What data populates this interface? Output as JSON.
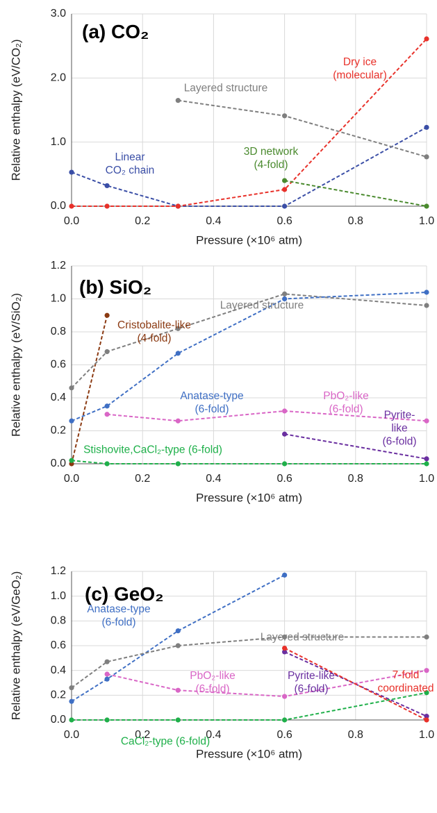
{
  "chart_data": [
    {
      "type": "line",
      "title": "(a) CO₂",
      "x_label": "Pressure (×10⁶ atm)",
      "y_label": "Relative enthalpy (eV/CO₂)",
      "x": [
        0,
        0.1,
        0.3,
        0.6,
        1.0
      ],
      "xlim": [
        0,
        1.0
      ],
      "xticks": [
        {
          "value": 0,
          "label": "0.0"
        },
        0.2,
        0.4,
        0.6,
        0.8,
        {
          "value": 1,
          "label": "1.0"
        }
      ],
      "ylim": [
        0,
        3.0
      ],
      "yticks": [
        {
          "value": 0,
          "label": "0.0"
        },
        {
          "value": 1,
          "label": "1.0"
        },
        {
          "value": 2,
          "label": "2.0"
        },
        {
          "value": 3,
          "label": "3.0"
        }
      ],
      "grid": true,
      "series": [
        {
          "name": "Linear\nCO₂ chain",
          "color": "#3a4ea6",
          "values": [
            0.53,
            0.32,
            0.0,
            0.0,
            1.23
          ]
        },
        {
          "name": "Dry ice\n(molecular)",
          "color": "#e8312a",
          "values": [
            0.0,
            0.0,
            0.0,
            0.26,
            2.61
          ]
        },
        {
          "name": "Layered structure",
          "color": "#7f7f7f",
          "values": [
            null,
            null,
            1.65,
            1.41,
            0.77
          ]
        },
        {
          "name": "3D network\n(4-fold)",
          "color": "#4a8a2e",
          "values": [
            null,
            null,
            null,
            0.4,
            0.0
          ]
        }
      ]
    },
    {
      "type": "line",
      "title": "(b) SiO₂",
      "x_label": "Pressure (×10⁶ atm)",
      "y_label": "Relative enthalpy (eV/SiO₂)",
      "x": [
        0,
        0.1,
        0.3,
        0.6,
        1.0
      ],
      "xlim": [
        0,
        1.0
      ],
      "xticks": [
        {
          "value": 0,
          "label": "0.0"
        },
        0.2,
        0.4,
        0.6,
        0.8,
        {
          "value": 1,
          "label": "1.0"
        }
      ],
      "ylim": [
        0,
        1.2
      ],
      "yticks": [
        {
          "value": 0,
          "label": "0.0"
        },
        0.2,
        0.4,
        0.6,
        0.8,
        {
          "value": 1,
          "label": "1.0"
        },
        1.2
      ],
      "grid": true,
      "series": [
        {
          "name": "Cristobalite-like\n(4-fold)",
          "color": "#8b3a12",
          "values": [
            0.0,
            0.9,
            null,
            null,
            null
          ]
        },
        {
          "name": "Layered structure",
          "color": "#7f7f7f",
          "values": [
            0.46,
            0.68,
            0.82,
            1.03,
            0.96
          ]
        },
        {
          "name": "Anatase-type\n(6-fold)",
          "color": "#3f6fc4",
          "values": [
            0.26,
            0.35,
            0.67,
            1.0,
            1.04
          ]
        },
        {
          "name": "PbO₂-like\n(6-fold)",
          "color": "#d966c6",
          "values": [
            null,
            0.3,
            0.26,
            0.32,
            0.26
          ]
        },
        {
          "name": "Pyrite-like\n(6-fold)",
          "color": "#6a2fa0",
          "values": [
            null,
            null,
            null,
            0.18,
            0.03
          ]
        },
        {
          "name": "Stishovite,CaCl₂-type (6-fold)",
          "color": "#1fb04a",
          "values": [
            0.02,
            0.0,
            0.0,
            0.0,
            0.0
          ]
        }
      ]
    },
    {
      "type": "line",
      "title": "(c) GeO₂",
      "x_label": "Pressure (×10⁶ atm)",
      "y_label": "Relative enthalpy (eV/GeO₂)",
      "x": [
        0,
        0.1,
        0.3,
        0.6,
        1.0
      ],
      "xlim": [
        0,
        1.0
      ],
      "xticks": [
        {
          "value": 0,
          "label": "0.0"
        },
        0.2,
        0.4,
        0.6,
        0.8,
        {
          "value": 1,
          "label": "1.0"
        }
      ],
      "ylim": [
        0,
        1.2
      ],
      "yticks": [
        {
          "value": 0,
          "label": "0.0"
        },
        0.2,
        0.4,
        0.6,
        0.8,
        {
          "value": 1,
          "label": "1.0"
        },
        1.2
      ],
      "grid": true,
      "series": [
        {
          "name": "Anatase-type\n(6-fold)",
          "color": "#3f6fc4",
          "values": [
            0.15,
            0.33,
            0.72,
            1.17,
            null
          ]
        },
        {
          "name": "Layered structure",
          "color": "#7f7f7f",
          "values": [
            0.26,
            0.47,
            0.6,
            0.67,
            0.67
          ]
        },
        {
          "name": "PbO₂-like\n(6-fold)",
          "color": "#d966c6",
          "values": [
            null,
            0.37,
            0.24,
            0.19,
            0.4
          ]
        },
        {
          "name": "Pyrite-like\n(6-fold)",
          "color": "#6a2fa0",
          "values": [
            null,
            null,
            null,
            0.55,
            0.03
          ]
        },
        {
          "name": "7-fold\ncoordinated",
          "color": "#e8312a",
          "values": [
            null,
            null,
            null,
            0.58,
            0.0
          ]
        },
        {
          "name": "CaCl₂-type (6-fold)",
          "color": "#1fb04a",
          "values": [
            0.0,
            0.0,
            0.0,
            0.0,
            0.22
          ]
        }
      ]
    }
  ]
}
